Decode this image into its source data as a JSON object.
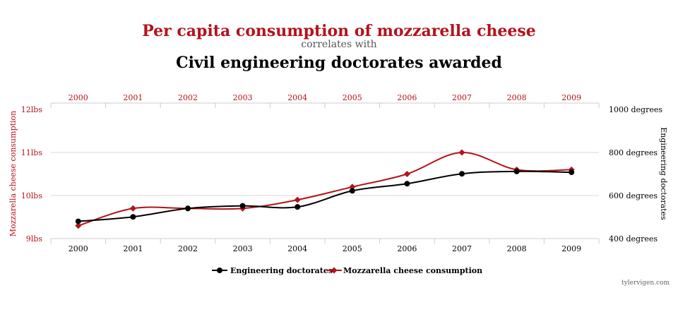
{
  "chart_data": {
    "type": "line",
    "title": "Per capita consumption of mozzarella cheese",
    "subtitle": "correlates with",
    "title2": "Civil engineering doctorates awarded",
    "categories": [
      "2000",
      "2001",
      "2002",
      "2003",
      "2004",
      "2005",
      "2006",
      "2007",
      "2008",
      "2009"
    ],
    "left_axis": {
      "label": "Mozzarella cheese consumption",
      "ticks": [
        "9lbs",
        "10lbs",
        "11lbs",
        "12lbs"
      ],
      "range": [
        9,
        12
      ]
    },
    "right_axis": {
      "label": "Engineering doctorates",
      "ticks": [
        "400 degrees",
        "600 degrees",
        "800 degrees",
        "1000 degrees"
      ],
      "range": [
        400,
        1000
      ]
    },
    "series": [
      {
        "name": "Engineering doctorates",
        "axis": "right",
        "color": "#000000",
        "marker": "circle",
        "values": [
          480,
          501,
          540,
          552,
          547,
          622,
          655,
          701,
          712,
          708
        ]
      },
      {
        "name": "Mozzarella cheese consumption",
        "axis": "left",
        "color": "#b5121b",
        "marker": "diamond",
        "values": [
          9.3,
          9.7,
          9.7,
          9.7,
          9.9,
          10.2,
          10.5,
          11.0,
          10.6,
          10.6
        ]
      }
    ],
    "grid": true,
    "legend": "bottom-center"
  },
  "credit": "tylervigen.com"
}
